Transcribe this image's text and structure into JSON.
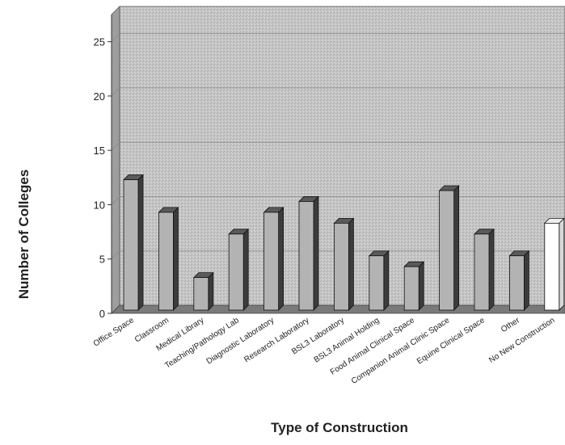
{
  "chart_data": {
    "type": "bar",
    "title": "",
    "xlabel": "Type of Construction",
    "ylabel": "Number of Colleges",
    "ylim": [
      0,
      25
    ],
    "yticks": [
      0,
      5,
      10,
      15,
      20,
      25
    ],
    "grid": true,
    "legend": "none",
    "categories": [
      "Office Space",
      "Classroom",
      "Medical Library",
      "Teaching/Pathology Lab",
      "Diagnostic Laboratory",
      "Research Laboratory",
      "BSL3 Laboratory",
      "BSL3 Animal Holding",
      "Food Animal Clinical Space",
      "Companion Animal Clinic Space",
      "Equine Clinical Space",
      "Other",
      "No New Construction"
    ],
    "values": [
      12,
      9,
      3,
      7,
      9,
      10,
      8,
      5,
      4,
      11,
      7,
      5,
      8
    ],
    "bar_colors": [
      "#b3b3b3",
      "#b3b3b3",
      "#b3b3b3",
      "#b3b3b3",
      "#b3b3b3",
      "#b3b3b3",
      "#b3b3b3",
      "#b3b3b3",
      "#b3b3b3",
      "#b3b3b3",
      "#b3b3b3",
      "#b3b3b3",
      "#ffffff"
    ],
    "wall_color": "#c4c4c4",
    "floor_color": "#7a7a7a"
  }
}
